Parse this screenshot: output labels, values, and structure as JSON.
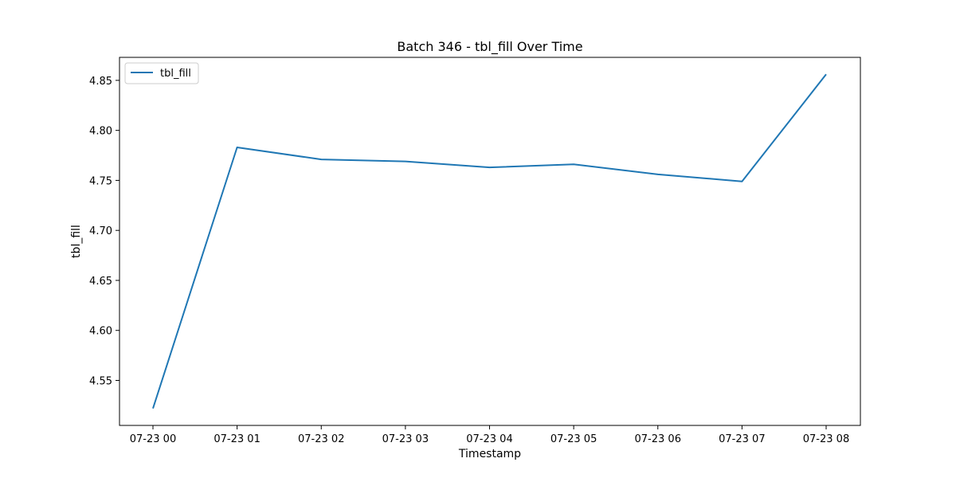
{
  "chart_data": {
    "type": "line",
    "title": "Batch 346 - tbl_fill Over Time",
    "xlabel": "Timestamp",
    "ylabel": "tbl_fill",
    "x": [
      "07-23 00",
      "07-23 01",
      "07-23 02",
      "07-23 03",
      "07-23 04",
      "07-23 05",
      "07-23 06",
      "07-23 07",
      "07-23 08"
    ],
    "series": [
      {
        "name": "tbl_fill",
        "color": "#1f77b4",
        "values": [
          4.522,
          4.783,
          4.771,
          4.769,
          4.763,
          4.766,
          4.756,
          4.749,
          4.856
        ]
      }
    ],
    "ylim": [
      4.505,
      4.873
    ],
    "yticks": [
      "4.55",
      "4.60",
      "4.65",
      "4.70",
      "4.75",
      "4.80",
      "4.85"
    ],
    "grid": false,
    "legend": "upper-left"
  }
}
